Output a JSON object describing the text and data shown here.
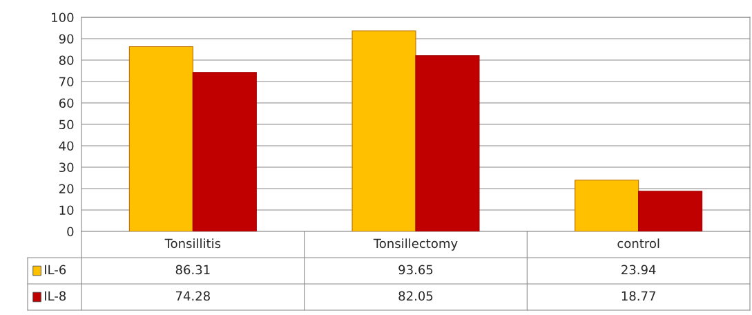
{
  "chart_data": {
    "type": "bar",
    "categories": [
      "Tonsillitis",
      "Tonsillectomy",
      "control"
    ],
    "series": [
      {
        "name": "IL-6",
        "color": "#ffc000",
        "values": [
          86.31,
          93.65,
          23.94
        ]
      },
      {
        "name": "IL-8",
        "color": "#c00000",
        "values": [
          74.28,
          82.05,
          18.77
        ]
      }
    ],
    "ylim": [
      0,
      100
    ],
    "yticks": [
      0,
      10,
      20,
      30,
      40,
      50,
      60,
      70,
      80,
      90,
      100
    ],
    "grid": "y",
    "data_labels": true,
    "legend": "bottom left"
  }
}
